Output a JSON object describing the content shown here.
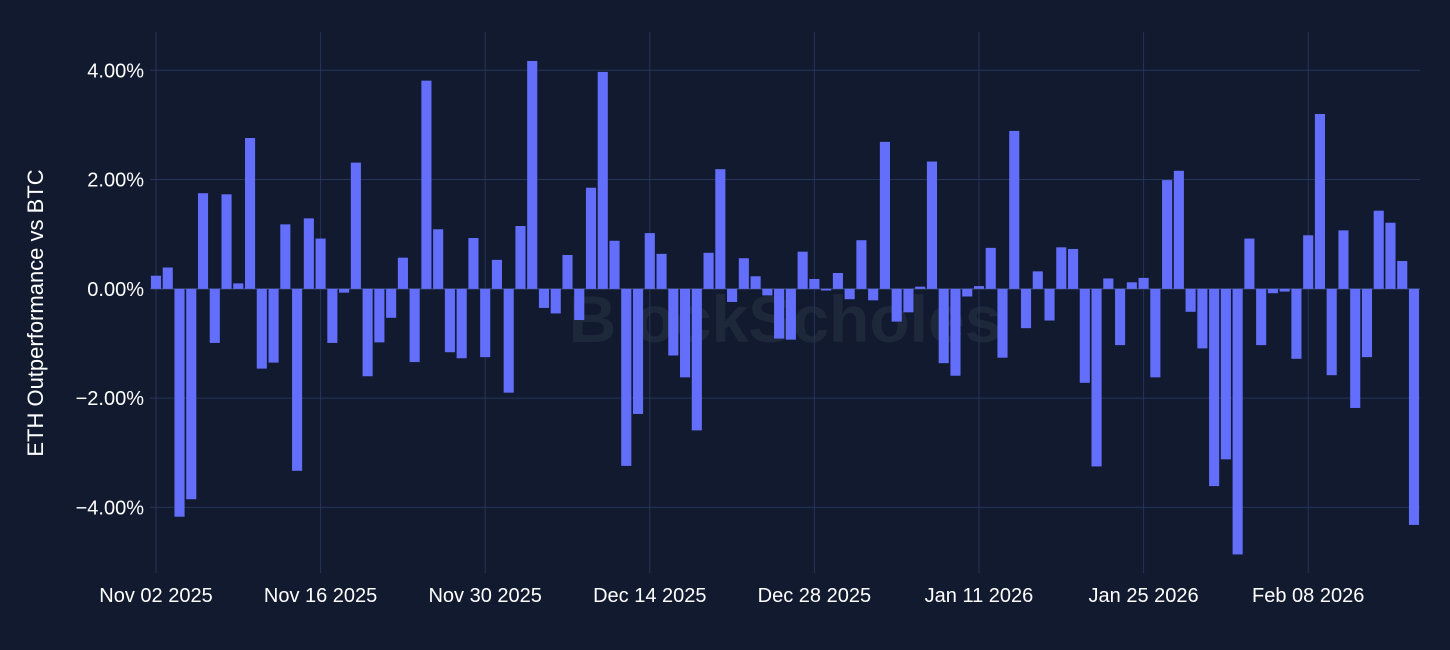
{
  "watermark": "BlockScholes",
  "colors": {
    "background": "#111a2e",
    "grid": "#26345a",
    "bar": "#636efa"
  },
  "chart_data": {
    "type": "bar",
    "ylabel": "ETH Outperformance vs BTC",
    "y_unit": "%",
    "ylim": [
      -5.2,
      4.7
    ],
    "y_ticks": [
      4,
      2,
      0,
      -2,
      -4
    ],
    "y_tick_labels": [
      "4.00%",
      "2.00%",
      "0.00%",
      "−2.00%",
      "−4.00%"
    ],
    "x_ticks": [
      "2025-11-02",
      "2025-11-16",
      "2025-11-30",
      "2025-12-14",
      "2025-12-28",
      "2026-01-11",
      "2026-01-25",
      "2026-02-08"
    ],
    "x_tick_labels": [
      "Nov 02 2025",
      "Nov 16 2025",
      "Nov 30 2025",
      "Dec 14 2025",
      "Dec 28 2025",
      "Jan 11 2026",
      "Jan 25 2026",
      "Feb 08 2026"
    ],
    "grid": true,
    "start_date": "2025-11-02",
    "series": [
      {
        "values": [
          0.24,
          0.39,
          -4.17,
          -3.85,
          1.75,
          -0.99,
          1.73,
          0.1,
          2.76,
          -1.46,
          -1.35,
          1.18,
          -3.33,
          1.29,
          0.92,
          -0.99,
          -0.07,
          2.31,
          -1.6,
          -0.98,
          -0.53,
          0.57,
          -1.34,
          3.81,
          1.09,
          -1.16,
          -1.27,
          0.93,
          -1.25,
          0.53,
          -1.9,
          1.15,
          4.17,
          -0.35,
          -0.45,
          0.62,
          -0.57,
          1.85,
          3.97,
          0.88,
          -3.24,
          -2.29,
          1.02,
          0.64,
          -1.22,
          -1.62,
          -2.59,
          0.66,
          2.19,
          -0.24,
          0.56,
          0.23,
          -0.12,
          -0.91,
          -0.93,
          0.68,
          0.18,
          -0.03,
          0.29,
          -0.19,
          0.89,
          -0.21,
          2.69,
          -0.6,
          -0.43,
          0.04,
          2.33,
          -1.36,
          -1.59,
          -0.14,
          0.05,
          0.75,
          -1.26,
          2.89,
          -0.72,
          0.32,
          -0.58,
          0.76,
          0.73,
          -1.72,
          -3.25,
          0.19,
          -1.03,
          0.12,
          0.2,
          -1.62,
          1.99,
          2.16,
          -0.42,
          -1.09,
          -3.61,
          -3.12,
          -4.86,
          0.92,
          -1.03,
          -0.08,
          -0.05,
          -1.28,
          0.98,
          3.2,
          -1.58,
          1.07,
          -2.18,
          -1.25,
          1.43,
          1.21,
          0.51,
          -4.32
        ]
      }
    ]
  }
}
